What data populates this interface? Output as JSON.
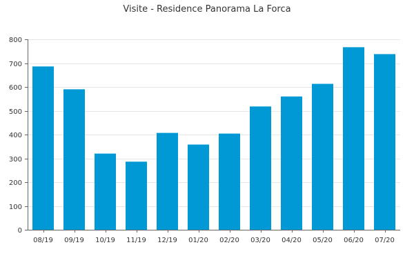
{
  "chart_data": {
    "type": "bar",
    "title": "Visite - Residence Panorama La Forca",
    "xlabel": "",
    "ylabel": "",
    "categories": [
      "08/19",
      "09/19",
      "10/19",
      "11/19",
      "12/19",
      "01/20",
      "02/20",
      "03/20",
      "04/20",
      "05/20",
      "06/20",
      "07/20"
    ],
    "values": [
      686,
      590,
      320,
      286,
      407,
      358,
      404,
      518,
      560,
      613,
      767,
      738
    ],
    "ylim": [
      0,
      800
    ],
    "yticks": [
      0,
      100,
      200,
      300,
      400,
      500,
      600,
      700,
      800
    ],
    "grid": true,
    "legend": "none",
    "bar_color": "#0099d6"
  }
}
